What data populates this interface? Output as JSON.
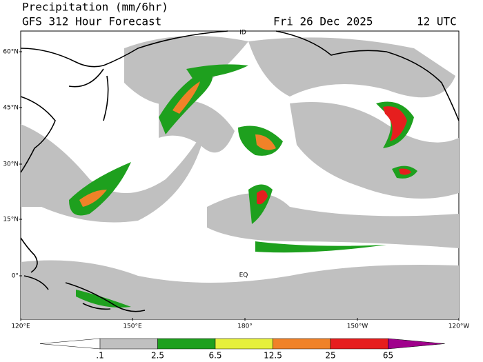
{
  "header": {
    "title": "Precipitation (mm/6hr)",
    "subtitle": "GFS 312 Hour Forecast",
    "date": "Fri 26 Dec 2025",
    "time": "12 UTC"
  },
  "map": {
    "lat_labels": [
      "60°N",
      "45°N",
      "30°N",
      "15°N",
      "0°"
    ],
    "lon_labels": [
      "120°E",
      "150°E",
      "180°",
      "150°W",
      "120°W"
    ],
    "annotations": [
      "ID",
      "EQ"
    ]
  },
  "colorbar": {
    "levels": [
      {
        "value": 0.1,
        "label": ".1"
      },
      2.5,
      6.5,
      12.5,
      25,
      65
    ],
    "colors": [
      "#ffffff",
      "#c0c0c0",
      "#1ea01e",
      "#e6f03c",
      "#f08228",
      "#e61e1e",
      "#a0008c"
    ]
  }
}
